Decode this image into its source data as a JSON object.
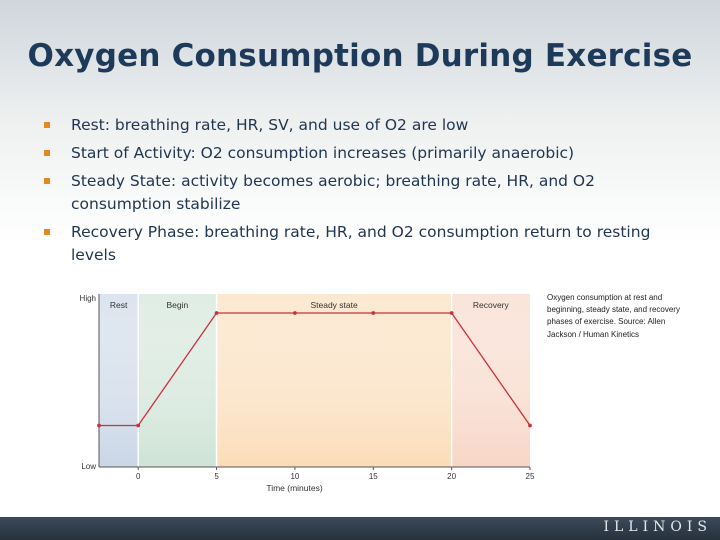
{
  "slide": {
    "title": "Oxygen Consumption During Exercise",
    "bullets": [
      "Rest: breathing rate, HR, SV, and use of O2 are low",
      "Start of Activity: O2 consumption increases (primarily anaerobic)",
      "Steady State: activity becomes aerobic; breathing rate, HR, and O2 consumption stabilize",
      "Recovery Phase: breathing rate, HR, and O2 consumption return to resting levels"
    ],
    "caption": "Oxygen consumption at rest and beginning, steady state, and recovery phases of exercise.  Source:  Allen Jackson / Human Kinetics",
    "footer_brand": "ILLINOIS"
  },
  "chart_data": {
    "type": "line",
    "xlabel": "Time (minutes)",
    "ylabel": "",
    "x_ticks": [
      "0",
      "5",
      "10",
      "15",
      "20",
      "25"
    ],
    "y_ticks": [
      "High",
      "Low"
    ],
    "xlim": [
      -2.5,
      25
    ],
    "ylim": [
      "Low",
      "High"
    ],
    "grid": false,
    "phases": [
      {
        "label": "Rest",
        "x_start": -2.5,
        "x_end": 0,
        "color": "#c9d6e6"
      },
      {
        "label": "Begin",
        "x_start": 0,
        "x_end": 5,
        "color": "#cfe3d6"
      },
      {
        "label": "Steady state",
        "x_start": 5,
        "x_end": 20,
        "color": "#fbdcb8"
      },
      {
        "label": "Recovery",
        "x_start": 20,
        "x_end": 25,
        "color": "#f7d6c6"
      }
    ],
    "series": [
      {
        "color": "#c8323a",
        "points": [
          {
            "x": -2.5,
            "y": 0.24
          },
          {
            "x": 0,
            "y": 0.24
          },
          {
            "x": 5,
            "y": 0.89
          },
          {
            "x": 10,
            "y": 0.89
          },
          {
            "x": 15,
            "y": 0.89
          },
          {
            "x": 20,
            "y": 0.89
          },
          {
            "x": 25,
            "y": 0.24
          }
        ]
      }
    ]
  }
}
